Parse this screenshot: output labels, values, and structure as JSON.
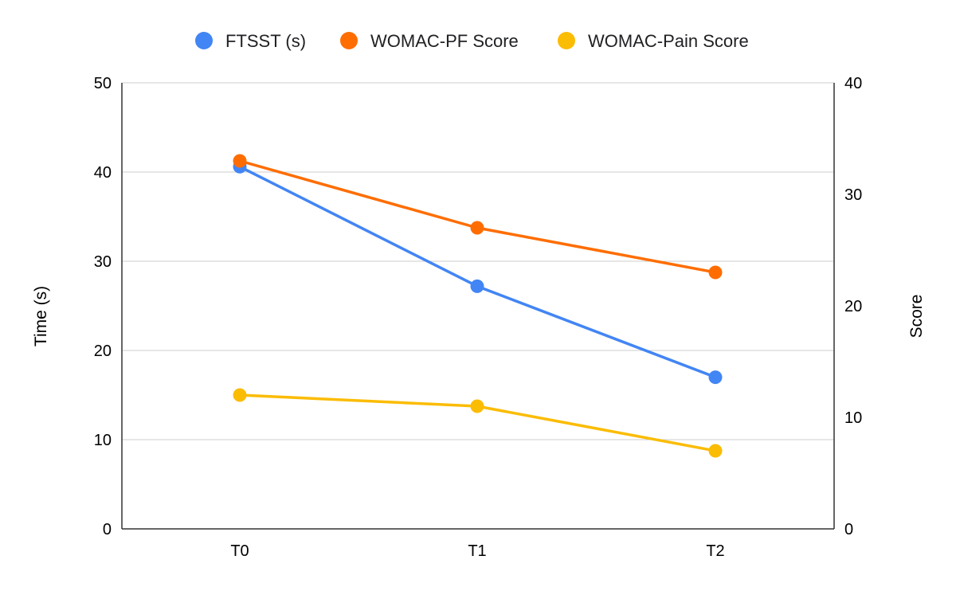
{
  "chart_data": {
    "type": "line",
    "title": "",
    "categories": [
      "T0",
      "T1",
      "T2"
    ],
    "xlabel": "",
    "ylabel": "Time (s)",
    "y2label": "Score",
    "ylim": [
      0,
      50
    ],
    "y2lim": [
      0,
      40
    ],
    "yticks": [
      "0",
      "10",
      "20",
      "30",
      "40",
      "50"
    ],
    "y2ticks": [
      "0",
      "10",
      "20",
      "30",
      "40"
    ],
    "grid": true,
    "legend_position": "top-center",
    "series": [
      {
        "name": "FTSST (s)",
        "axis": "left",
        "color": "#4285F4",
        "values": [
          40.6,
          27.2,
          17.0
        ]
      },
      {
        "name": "WOMAC-PF Score",
        "axis": "right",
        "color": "#FF6D01",
        "values": [
          33.0,
          27.0,
          23.0
        ]
      },
      {
        "name": "WOMAC-Pain Score",
        "axis": "right",
        "color": "#FBBC04",
        "values": [
          12.0,
          11.0,
          7.0
        ]
      }
    ]
  }
}
